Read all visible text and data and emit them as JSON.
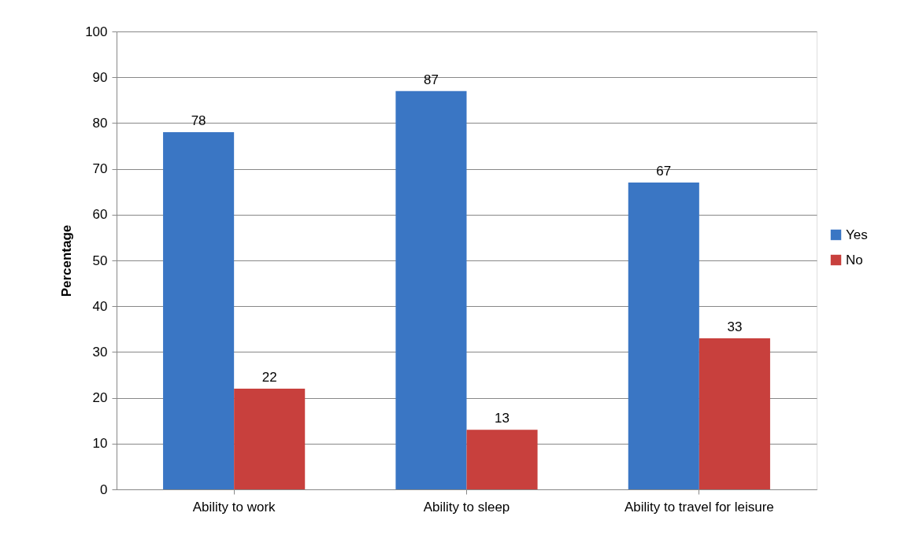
{
  "chart_data": {
    "type": "bar",
    "ylabel": "Percentage",
    "categories": [
      "Ability to work",
      "Ability to sleep",
      "Ability to travel for leisure"
    ],
    "series": [
      {
        "name": "Yes",
        "color": "#3a76c4",
        "values": [
          78,
          87,
          67
        ]
      },
      {
        "name": "No",
        "color": "#c8403d",
        "values": [
          22,
          13,
          33
        ]
      }
    ],
    "ylim": [
      0,
      100
    ],
    "yticks": [
      0,
      10,
      20,
      30,
      40,
      50,
      60,
      70,
      80,
      90,
      100
    ],
    "grid": "y",
    "legend": "right",
    "data_labels": true
  }
}
